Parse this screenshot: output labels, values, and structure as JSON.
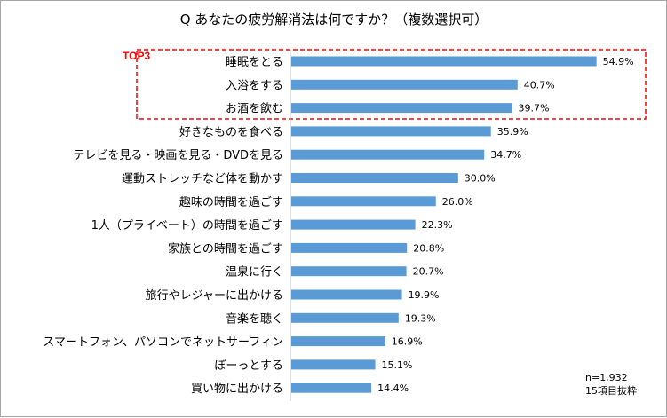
{
  "chart_data": {
    "type": "bar",
    "orientation": "horizontal",
    "title": "Q あなたの疲労解消法は何ですか？（複数選択可）",
    "categories": [
      "睡眠をとる",
      "入浴をする",
      "お酒を飲む",
      "好きなものを食べる",
      "テレビを見る・映画を見る・DVDを見る",
      "運動ストレッチなど体を動かす",
      "趣味の時間を過ごす",
      "1人（プライベート）の時間を過ごす",
      "家族との時間を過ごす",
      "温泉に行く",
      "旅行やレジャーに出かける",
      "音楽を聴く",
      "スマートフォン、パソコンでネットサーフィン",
      "ぼーっとする",
      "買い物に出かける"
    ],
    "values": [
      54.9,
      40.7,
      39.7,
      35.9,
      34.7,
      30.0,
      26.0,
      22.3,
      20.8,
      20.7,
      19.9,
      19.3,
      16.9,
      15.1,
      14.4
    ],
    "value_labels": [
      "54.9%",
      "40.7%",
      "39.7%",
      "35.9%",
      "34.7%",
      "30.0%",
      "26.0%",
      "22.3%",
      "20.8%",
      "20.7%",
      "19.9%",
      "19.3%",
      "16.9%",
      "15.1%",
      "14.4%"
    ],
    "xlim": [
      0,
      60
    ],
    "bar_color": "#5b9bd5",
    "highlight": {
      "label": "TOP3",
      "count": 3,
      "color": "#ff0000"
    },
    "notes": [
      "n=1,932",
      "15項目抜粋"
    ],
    "grid": false
  }
}
